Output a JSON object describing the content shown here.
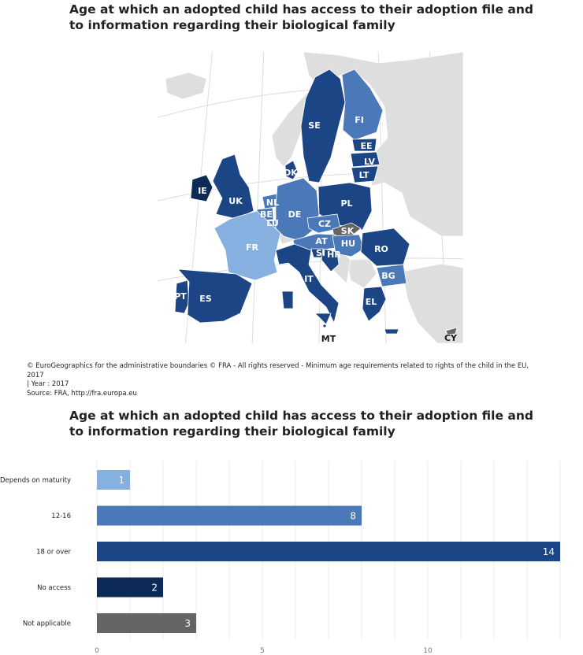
{
  "map": {
    "title": "Age at which an adopted child has access to their adoption file and to information regarding their biological family",
    "labels": [
      "SE",
      "FI",
      "EE",
      "LV",
      "LT",
      "DK",
      "IE",
      "UK",
      "NL",
      "BE",
      "LU",
      "DE",
      "PL",
      "CZ",
      "SK",
      "FR",
      "AT",
      "HU",
      "RO",
      "SI",
      "HR",
      "BG",
      "IT",
      "PT",
      "ES",
      "EL",
      "MT",
      "CY"
    ],
    "footnote": {
      "line1": "© EuroGeographics for the administrative boundaries © FRA - All rights reserved - Minimum age requirements related to rights of the child in the EU, 2017",
      "line2": "| Year : 2017",
      "line3": "Source: FRA, http://fra.europa.eu"
    }
  },
  "chart": {
    "title": "Age at which an adopted child has access to their adoption file and to information regarding their biological family"
  },
  "chart_data": {
    "type": "bar",
    "orientation": "horizontal",
    "categories": [
      "Depends on maturity",
      "12-16",
      "18 or over",
      "No access",
      "Not applicable"
    ],
    "values": [
      1,
      8,
      14,
      2,
      3
    ],
    "colors": [
      "#86b0e0",
      "#4a78b8",
      "#1b4585",
      "#0c2a55",
      "#646464"
    ],
    "xticks": [
      0,
      5,
      10
    ],
    "xlim": [
      0,
      14
    ],
    "grid": true,
    "legend": "none"
  }
}
